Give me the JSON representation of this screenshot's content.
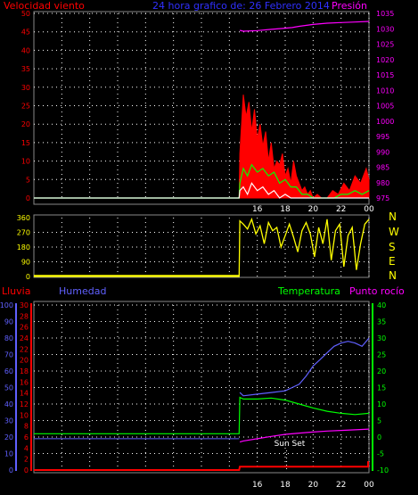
{
  "header": {
    "wind_label": "Velocidad viento",
    "title": "24 hora grafico de:  26 Febrero 2014",
    "pressure_label": "Presión"
  },
  "panel2": {
    "compass": [
      "N",
      "W",
      "S",
      "E",
      "N"
    ]
  },
  "panel3": {
    "rain_label": "Lluvia",
    "humidity_label": "Humedad",
    "temp_label": "Temperatura",
    "dew_label": "Punto rocío",
    "annotation": "Sun Set"
  },
  "colors": {
    "wind": "#ff0000",
    "gust": "#ff0000",
    "wind_avg": "#00ff00",
    "wind_min": "#ffffff",
    "pressure": "#ff00ff",
    "direction": "#ffff00",
    "humidity": "#6060ff",
    "temperature": "#00ff00",
    "dewpoint": "#ff00ff",
    "rain": "#ff0000",
    "axis_wind": "#ff0000",
    "axis_pressure": "#ff00ff",
    "axis_humidity": "#6060ff",
    "axis_rain": "#ff0000",
    "axis_temp": "#00ff00",
    "grid": "#ffffff"
  },
  "chart_data": [
    {
      "type": "line",
      "panel": "wind",
      "x_ticks": [
        "16",
        "18",
        "20",
        "22",
        "00"
      ],
      "y_left": {
        "ticks": [
          0,
          5,
          10,
          15,
          20,
          25,
          30,
          35,
          40,
          45,
          50
        ],
        "range": [
          0,
          50
        ]
      },
      "y_right": {
        "ticks": [
          975,
          980,
          985,
          990,
          995,
          1000,
          1005,
          1010,
          1015,
          1020,
          1025,
          1030,
          1035
        ],
        "range": [
          975,
          1035
        ]
      },
      "x_range_hours": [
        0,
        24
      ],
      "x_axis_end_hour": 24,
      "series": [
        {
          "role": "gust",
          "x": [
            0,
            14.7,
            14.75,
            15.0,
            15.2,
            15.4,
            15.6,
            15.8,
            16.0,
            16.2,
            16.4,
            16.6,
            16.8,
            17.0,
            17.2,
            17.4,
            17.6,
            17.8,
            18.0,
            18.2,
            18.4,
            18.6,
            18.8,
            19.0,
            19.2,
            19.4,
            19.6,
            19.8,
            20.0,
            20.3,
            20.6,
            21.0,
            21.4,
            21.8,
            22.2,
            22.6,
            23.0,
            23.4,
            23.8,
            24
          ],
          "values": [
            0,
            0,
            12,
            28,
            22,
            26,
            18,
            24,
            16,
            20,
            14,
            18,
            10,
            15,
            8,
            10,
            9,
            12,
            6,
            8,
            4,
            10,
            6,
            4,
            2,
            3,
            1,
            2,
            0,
            1,
            0,
            0,
            2,
            1,
            4,
            2,
            6,
            4,
            8,
            5
          ]
        },
        {
          "role": "average",
          "x": [
            0,
            14.7,
            14.75,
            15.0,
            15.3,
            15.6,
            16.0,
            16.4,
            16.8,
            17.2,
            17.6,
            18.0,
            18.4,
            18.8,
            19.2,
            19.6,
            20.0,
            20.5,
            21.0,
            21.5,
            22.0,
            22.5,
            23.0,
            23.5,
            24
          ],
          "values": [
            0,
            0,
            4,
            8,
            6,
            9,
            7,
            8,
            6,
            7,
            4,
            5,
            3,
            3,
            1,
            1,
            0,
            0,
            0,
            0,
            1,
            1,
            2,
            1,
            2
          ]
        },
        {
          "role": "minimum",
          "x": [
            0,
            14.7,
            14.75,
            15.0,
            15.3,
            15.6,
            16.0,
            16.4,
            16.8,
            17.2,
            17.6,
            18.0,
            18.4,
            18.8,
            19.2,
            19.6,
            20.0,
            24
          ],
          "values": [
            0,
            0,
            2,
            3,
            1,
            4,
            2,
            3,
            1,
            2,
            0,
            1,
            0,
            0,
            0,
            0,
            0,
            0
          ]
        },
        {
          "role": "pressure",
          "x": [
            14.75,
            15.0,
            16.0,
            17.0,
            18.0,
            18.5,
            19.0,
            20.0,
            21.0,
            22.0,
            23.0,
            24
          ],
          "values": [
            1029.5,
            1029.2,
            1029.4,
            1029.8,
            1030.2,
            1030.4,
            1030.8,
            1031.4,
            1031.8,
            1032.0,
            1032.2,
            1032.4
          ]
        }
      ]
    },
    {
      "type": "line",
      "panel": "wind_direction",
      "x_ticks": [
        "16",
        "18",
        "20",
        "22",
        "00"
      ],
      "y_left": {
        "ticks": [
          0,
          90,
          180,
          270,
          360
        ],
        "range": [
          0,
          360
        ]
      },
      "x_range_hours": [
        0,
        24
      ],
      "series": [
        {
          "role": "direction",
          "x": [
            0,
            14.7,
            14.75,
            15.0,
            15.3,
            15.6,
            15.9,
            16.2,
            16.5,
            16.8,
            17.1,
            17.4,
            17.7,
            18.0,
            18.3,
            18.6,
            18.9,
            19.2,
            19.5,
            19.8,
            20.1,
            20.4,
            20.7,
            21.0,
            21.3,
            21.6,
            21.9,
            22.2,
            22.5,
            22.8,
            23.1,
            23.4,
            23.7,
            24
          ],
          "values": [
            0,
            0,
            340,
            320,
            290,
            350,
            260,
            310,
            200,
            330,
            280,
            300,
            180,
            250,
            320,
            240,
            150,
            280,
            330,
            260,
            120,
            300,
            200,
            350,
            100,
            280,
            320,
            60,
            250,
            300,
            40,
            200,
            320,
            350
          ]
        }
      ]
    },
    {
      "type": "line",
      "panel": "rain_humidity_temp",
      "x_ticks": [
        "16",
        "18",
        "20",
        "22",
        "00"
      ],
      "y_humidity": {
        "ticks": [
          0,
          10,
          20,
          30,
          40,
          50,
          60,
          70,
          80,
          90,
          100
        ],
        "range": [
          0,
          100
        ]
      },
      "y_rain": {
        "ticks": [
          0,
          2,
          4,
          6,
          8,
          10,
          12,
          14,
          16,
          18,
          20,
          22,
          24,
          26,
          28,
          30
        ],
        "range": [
          0,
          30
        ]
      },
      "y_temp": {
        "ticks": [
          -10,
          -5,
          0,
          5,
          10,
          15,
          20,
          25,
          30,
          35,
          40
        ],
        "range": [
          -10,
          40
        ]
      },
      "x_range_hours": [
        0,
        24
      ],
      "series": [
        {
          "role": "humidity",
          "x": [
            14.75,
            15.0,
            16.0,
            17.0,
            18.0,
            18.5,
            19.0,
            19.5,
            20.0,
            20.5,
            21.0,
            21.5,
            22.0,
            22.5,
            23.0,
            23.5,
            24
          ],
          "values": [
            47,
            45,
            46,
            47,
            48,
            50,
            52,
            57,
            63,
            67,
            71,
            75,
            77,
            78,
            77,
            75,
            80
          ]
        },
        {
          "role": "temperature",
          "x": [
            0,
            14.7,
            14.75,
            15.0,
            16.0,
            17.0,
            18.0,
            19.0,
            20.0,
            21.0,
            22.0,
            23.0,
            24
          ],
          "values": [
            1,
            1,
            12,
            11.5,
            11.5,
            11.8,
            11.2,
            10.0,
            8.8,
            7.8,
            7.2,
            6.8,
            7.2
          ]
        },
        {
          "role": "dewpoint",
          "x": [
            14.75,
            15.0,
            16.0,
            17.0,
            18.0,
            19.0,
            20.0,
            21.0,
            22.0,
            23.0,
            24
          ],
          "values": [
            -1.5,
            -1.2,
            -0.5,
            0.2,
            0.8,
            1.2,
            1.5,
            1.8,
            2.0,
            2.2,
            2.4
          ]
        },
        {
          "role": "rain_baseline",
          "x": [
            0,
            14.7,
            14.75,
            24
          ],
          "values": [
            0,
            0,
            0.6,
            0.6
          ]
        },
        {
          "role": "humidity_baseline",
          "x": [
            0,
            14.7
          ],
          "values": [
            19,
            19
          ]
        }
      ],
      "annotations": [
        {
          "label": "Sun Set",
          "x_hour": 18.1
        }
      ]
    }
  ]
}
